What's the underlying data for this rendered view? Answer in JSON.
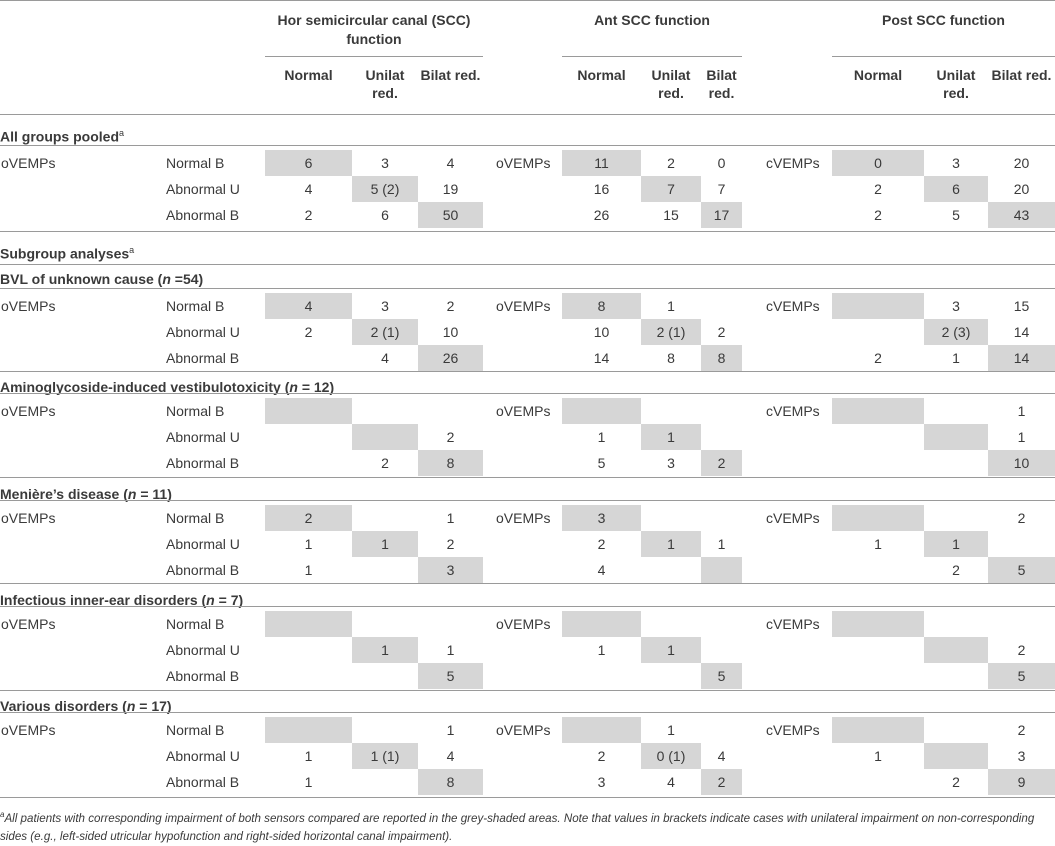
{
  "header": {
    "groups": [
      {
        "id": "hor",
        "label": "Hor semicircular canal (SCC) function"
      },
      {
        "id": "ant",
        "label": "Ant SCC function"
      },
      {
        "id": "post",
        "label": "Post SCC function"
      }
    ],
    "subcols": {
      "normal": "Normal",
      "unilat": "Unilat red.",
      "bilat": "Bilat red."
    }
  },
  "sections": [
    {
      "title": "All groups pooled",
      "title_italic": "",
      "title_tail": "",
      "sup": "a",
      "rows": [
        {
          "group": "oVEMPs",
          "label": "Normal B",
          "hor": [
            "6",
            "3",
            "4"
          ],
          "ant_group": "oVEMPs",
          "ant": [
            "11",
            "2",
            "0"
          ],
          "post_group": "cVEMPs",
          "post": [
            "0",
            "3",
            "20"
          ]
        },
        {
          "group": "",
          "label": "Abnormal U",
          "hor": [
            "4",
            "5 (2)",
            "19"
          ],
          "ant_group": "",
          "ant": [
            "16",
            "7",
            "7"
          ],
          "post_group": "",
          "post": [
            "2",
            "6",
            "20"
          ]
        },
        {
          "group": "",
          "label": "Abnormal B",
          "hor": [
            "2",
            "6",
            "50"
          ],
          "ant_group": "",
          "ant": [
            "26",
            "15",
            "17"
          ],
          "post_group": "",
          "post": [
            "2",
            "5",
            "43"
          ]
        }
      ]
    },
    {
      "title": "Subgroup analyses",
      "title_italic": "",
      "title_tail": "",
      "sup": "a",
      "rows": []
    },
    {
      "title": "BVL of unknown cause (",
      "title_italic": "n",
      "title_tail": " =54)",
      "sup": "",
      "rows": [
        {
          "group": "oVEMPs",
          "label": "Normal B",
          "hor": [
            "4",
            "3",
            "2"
          ],
          "ant_group": "oVEMPs",
          "ant": [
            "8",
            "1",
            ""
          ],
          "post_group": "cVEMPs",
          "post": [
            "",
            "3",
            "15"
          ]
        },
        {
          "group": "",
          "label": "Abnormal U",
          "hor": [
            "2",
            "2 (1)",
            "10"
          ],
          "ant_group": "",
          "ant": [
            "10",
            "2 (1)",
            "2"
          ],
          "post_group": "",
          "post": [
            "",
            "2 (3)",
            "14"
          ]
        },
        {
          "group": "",
          "label": "Abnormal B",
          "hor": [
            "",
            "4",
            "26"
          ],
          "ant_group": "",
          "ant": [
            "14",
            "8",
            "8"
          ],
          "post_group": "",
          "post": [
            "2",
            "1",
            "14"
          ]
        }
      ]
    },
    {
      "title": "Aminoglycoside-induced vestibulotoxicity (",
      "title_italic": "n",
      "title_tail": " = 12)",
      "sup": "",
      "rows": [
        {
          "group": "oVEMPs",
          "label": "Normal B",
          "hor": [
            "",
            "",
            ""
          ],
          "ant_group": "oVEMPs",
          "ant": [
            "",
            "",
            ""
          ],
          "post_group": "cVEMPs",
          "post": [
            "",
            "",
            "1"
          ]
        },
        {
          "group": "",
          "label": "Abnormal U",
          "hor": [
            "",
            "",
            "2"
          ],
          "ant_group": "",
          "ant": [
            "1",
            "1",
            ""
          ],
          "post_group": "",
          "post": [
            "",
            "",
            "1"
          ]
        },
        {
          "group": "",
          "label": "Abnormal B",
          "hor": [
            "",
            "2",
            "8"
          ],
          "ant_group": "",
          "ant": [
            "5",
            "3",
            "2"
          ],
          "post_group": "",
          "post": [
            "",
            "",
            "10"
          ]
        }
      ]
    },
    {
      "title": "Menière’s disease (",
      "title_italic": "n",
      "title_tail": " = 11)",
      "sup": "",
      "rows": [
        {
          "group": "oVEMPs",
          "label": "Normal B",
          "hor": [
            "2",
            "",
            "1"
          ],
          "ant_group": "oVEMPs",
          "ant": [
            "3",
            "",
            ""
          ],
          "post_group": "cVEMPs",
          "post": [
            "",
            "",
            "2"
          ]
        },
        {
          "group": "",
          "label": "Abnormal U",
          "hor": [
            "1",
            "1",
            "2"
          ],
          "ant_group": "",
          "ant": [
            "2",
            "1",
            "1"
          ],
          "post_group": "",
          "post": [
            "1",
            "1",
            ""
          ]
        },
        {
          "group": "",
          "label": "Abnormal B",
          "hor": [
            "1",
            "",
            "3"
          ],
          "ant_group": "",
          "ant": [
            "4",
            "",
            ""
          ],
          "post_group": "",
          "post": [
            "",
            "2",
            "5"
          ]
        }
      ]
    },
    {
      "title": "Infectious inner-ear disorders (",
      "title_italic": "n",
      "title_tail": " = 7)",
      "sup": "",
      "rows": [
        {
          "group": "oVEMPs",
          "label": "Normal B",
          "hor": [
            "",
            "",
            ""
          ],
          "ant_group": "oVEMPs",
          "ant": [
            "",
            "",
            ""
          ],
          "post_group": "cVEMPs",
          "post": [
            "",
            "",
            ""
          ]
        },
        {
          "group": "",
          "label": "Abnormal U",
          "hor": [
            "",
            "1",
            "1"
          ],
          "ant_group": "",
          "ant": [
            "1",
            "1",
            ""
          ],
          "post_group": "",
          "post": [
            "",
            "",
            "2"
          ]
        },
        {
          "group": "",
          "label": "Abnormal B",
          "hor": [
            "",
            "",
            "5"
          ],
          "ant_group": "",
          "ant": [
            "",
            "",
            "5"
          ],
          "post_group": "",
          "post": [
            "",
            "",
            "5"
          ]
        }
      ]
    },
    {
      "title": "Various disorders (",
      "title_italic": "n",
      "title_tail": " = 17)",
      "sup": "",
      "rows": [
        {
          "group": "oVEMPs",
          "label": "Normal B",
          "hor": [
            "",
            "",
            "1"
          ],
          "ant_group": "oVEMPs",
          "ant": [
            "",
            "1",
            ""
          ],
          "post_group": "cVEMPs",
          "post": [
            "",
            "",
            "2"
          ]
        },
        {
          "group": "",
          "label": "Abnormal U",
          "hor": [
            "1",
            "1 (1)",
            "4"
          ],
          "ant_group": "",
          "ant": [
            "2",
            "0 (1)",
            "4"
          ],
          "post_group": "",
          "post": [
            "1",
            "",
            "3"
          ]
        },
        {
          "group": "",
          "label": "Abnormal B",
          "hor": [
            "1",
            "",
            "8"
          ],
          "ant_group": "",
          "ant": [
            "3",
            "4",
            "2"
          ],
          "post_group": "",
          "post": [
            "",
            "2",
            "9"
          ]
        }
      ]
    }
  ],
  "footnote": {
    "sup": "a",
    "text": "All patients with corresponding impairment of both sensors compared are reported in the grey-shaded areas. Note that values in brackets indicate cases with unilateral impairment on non-corresponding sides (e.g., left-sided utricular hypofunction and right-sided horizontal canal impairment)."
  }
}
